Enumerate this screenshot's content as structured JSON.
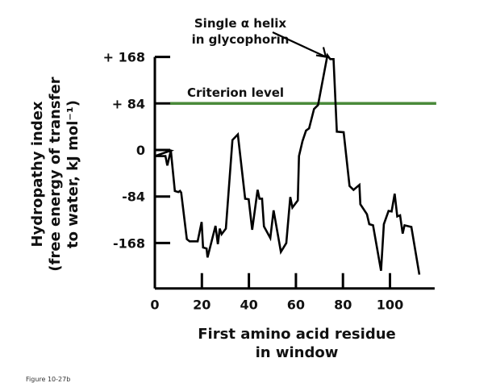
{
  "chart_data": {
    "type": "line",
    "title": "",
    "xlabel": [
      "First amino acid residue",
      "in window"
    ],
    "ylabel": [
      "Hydropathy index",
      "(free energy of transfer",
      "to water, kJ mol⁻¹)"
    ],
    "xlim": [
      0,
      119
    ],
    "ylim": [
      -250,
      168
    ],
    "x_ticks": [
      0,
      20,
      40,
      60,
      80,
      100
    ],
    "x_tick_labels": [
      "0",
      "20",
      "40",
      "60",
      "80",
      "100"
    ],
    "y_ticks": [
      168,
      84,
      0,
      -84,
      -168
    ],
    "y_tick_labels": [
      "+ 168",
      "+ 84",
      "0",
      "-84",
      "-168"
    ],
    "grid": false,
    "series": [
      {
        "color": "#000000",
        "points": [
          [
            0,
            0
          ],
          [
            6,
            0
          ],
          [
            6.8,
            -1
          ],
          [
            0,
            -11
          ],
          [
            4.5,
            -11
          ],
          [
            5.3,
            -28
          ],
          [
            6.8,
            -1
          ],
          [
            8.5,
            -74
          ],
          [
            10,
            -76
          ],
          [
            10.7,
            -74
          ],
          [
            11.2,
            -77
          ],
          [
            13.6,
            -161
          ],
          [
            14.8,
            -165
          ],
          [
            18.2,
            -165
          ],
          [
            19.9,
            -130
          ],
          [
            20.5,
            -176
          ],
          [
            22,
            -178
          ],
          [
            22.4,
            -194
          ],
          [
            25.8,
            -137
          ],
          [
            26.8,
            -170
          ],
          [
            27.6,
            -142
          ],
          [
            28.4,
            -152
          ],
          [
            30.2,
            -142
          ],
          [
            33.0,
            18
          ],
          [
            35.3,
            28
          ],
          [
            38.4,
            -88
          ],
          [
            39.9,
            -89
          ],
          [
            41.4,
            -144
          ],
          [
            43.7,
            -72
          ],
          [
            44.5,
            -88
          ],
          [
            45.6,
            -88
          ],
          [
            46.4,
            -138
          ],
          [
            49.1,
            -159
          ],
          [
            50.5,
            -109
          ],
          [
            53.6,
            -184
          ],
          [
            55.9,
            -168
          ],
          [
            57.6,
            -85
          ],
          [
            58.5,
            -104
          ],
          [
            60.8,
            -91
          ],
          [
            61.3,
            -11
          ],
          [
            62.8,
            16
          ],
          [
            64.3,
            35
          ],
          [
            65.6,
            39
          ],
          [
            67.7,
            74
          ],
          [
            69.4,
            81
          ],
          [
            73.4,
            171
          ],
          [
            74.6,
            164
          ],
          [
            76.0,
            164
          ],
          [
            77.4,
            33
          ],
          [
            80.3,
            32
          ],
          [
            82.8,
            -65
          ],
          [
            84.5,
            -72
          ],
          [
            87.0,
            -63
          ],
          [
            87.4,
            -98
          ],
          [
            90.2,
            -116
          ],
          [
            91.2,
            -134
          ],
          [
            92.8,
            -136
          ],
          [
            96.2,
            -218
          ],
          [
            97.4,
            -134
          ],
          [
            99.4,
            -110
          ],
          [
            100.7,
            -111
          ],
          [
            102.0,
            -79
          ],
          [
            103.1,
            -120
          ],
          [
            104.3,
            -118
          ],
          [
            105.4,
            -151
          ],
          [
            106.2,
            -136
          ],
          [
            109.1,
            -139
          ],
          [
            112.5,
            -225
          ]
        ]
      }
    ],
    "reference_line": {
      "label": "Criterion level",
      "value": 84,
      "color": "#4a8a3a"
    },
    "annotations": [
      {
        "text": [
          "Single α helix",
          "in glycophorin"
        ],
        "points_to": [
          73.4,
          171
        ]
      }
    ]
  },
  "caption": "Figure 10-27b"
}
